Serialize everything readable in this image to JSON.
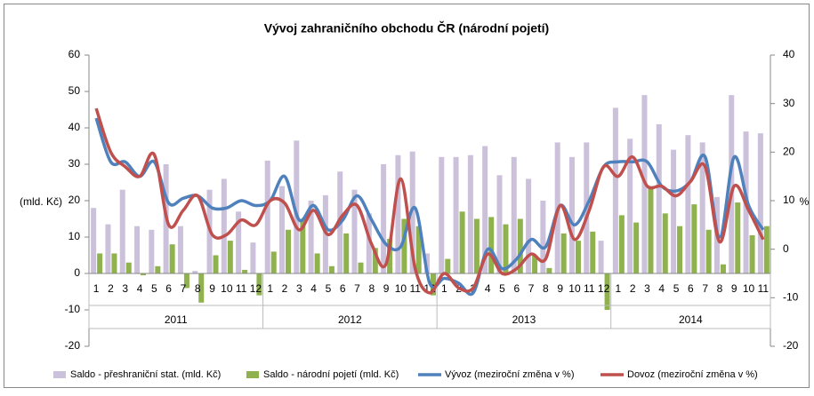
{
  "chart_data": {
    "type": "bar-line",
    "title": "Vývoj zahraničního obchodu ČR (národní pojetí)",
    "y_label": "(mld. Kč)",
    "y2_label": "%",
    "categories": [
      "1",
      "2",
      "3",
      "4",
      "5",
      "6",
      "7",
      "8",
      "9",
      "10",
      "11",
      "12",
      "1",
      "2",
      "3",
      "4",
      "5",
      "6",
      "7",
      "8",
      "9",
      "10",
      "11",
      "12",
      "1",
      "2",
      "3",
      "4",
      "5",
      "6",
      "7",
      "8",
      "9",
      "10",
      "11",
      "12",
      "1",
      "2",
      "3",
      "4",
      "5",
      "6",
      "7",
      "8",
      "9",
      "10",
      "11"
    ],
    "year_labels": [
      "2011",
      "2012",
      "2013",
      "2014"
    ],
    "ylim": [
      -20,
      60
    ],
    "yticks": [
      -20,
      -10,
      0,
      10,
      20,
      30,
      40,
      50,
      60
    ],
    "y2lim": [
      -20,
      40
    ],
    "y2ticks": [
      -20,
      -10,
      0,
      10,
      20,
      30,
      40
    ],
    "series": [
      {
        "name": "Saldo - přeshraniční stat. (mld. Kč)",
        "kind": "bar",
        "color": "#ccc1da",
        "values": [
          18,
          13.5,
          23,
          13,
          12,
          30,
          13,
          0.7,
          23,
          26,
          17,
          8.5,
          31,
          24,
          36.5,
          20,
          21.5,
          28,
          23,
          16.5,
          30,
          32.5,
          33.5,
          5.5,
          32,
          32,
          32.5,
          35,
          27,
          32,
          26,
          20,
          36,
          32,
          36,
          9,
          45.5,
          37,
          49,
          41,
          34,
          38,
          36,
          21,
          49,
          39,
          38.5
        ]
      },
      {
        "name": "Saldo - národní pojetí (mld. Kč)",
        "kind": "bar",
        "color": "#8fb24f",
        "values": [
          5.5,
          5.5,
          3,
          -0.5,
          2,
          8,
          -4,
          -8,
          5,
          9,
          1,
          -6,
          6,
          12,
          15,
          5.5,
          2,
          11,
          3,
          7,
          9.5,
          15,
          13,
          -6,
          4,
          17,
          15,
          15.5,
          13.5,
          15,
          5,
          1.5,
          11,
          9,
          11.5,
          -10,
          16,
          14,
          24,
          16.5,
          13,
          19,
          12,
          2.5,
          19.5,
          10.5,
          13
        ]
      },
      {
        "name": "Vývoz (meziroční změna v %)",
        "kind": "line",
        "axis": "y2",
        "color": "#4f81bd",
        "values": [
          27,
          18,
          18,
          15,
          18,
          9.5,
          10.5,
          11,
          8.5,
          8.5,
          10,
          9,
          10,
          15,
          6,
          9,
          4,
          6,
          11,
          6,
          1,
          0.5,
          8.5,
          -7,
          -6,
          -7,
          -9,
          0,
          -4,
          -2,
          2,
          0.5,
          9,
          5,
          10,
          17,
          18,
          18,
          18,
          13,
          12,
          14,
          19,
          2.5,
          19,
          9,
          4
        ]
      },
      {
        "name": "Dovoz (meziroční změna v %)",
        "kind": "line",
        "axis": "y2",
        "color": "#c0504d",
        "values": [
          29,
          20,
          17,
          15,
          19.5,
          5,
          8,
          11,
          3,
          3,
          6,
          5,
          10,
          9.5,
          4,
          8,
          3,
          7,
          9,
          1,
          -3,
          14.5,
          -4,
          -9,
          -5,
          -8,
          -8,
          -1,
          -5,
          -4,
          -1,
          -2,
          9,
          2,
          8,
          17,
          15,
          19,
          13,
          13,
          11,
          14,
          17,
          1.5,
          13,
          8,
          2
        ]
      }
    ]
  }
}
